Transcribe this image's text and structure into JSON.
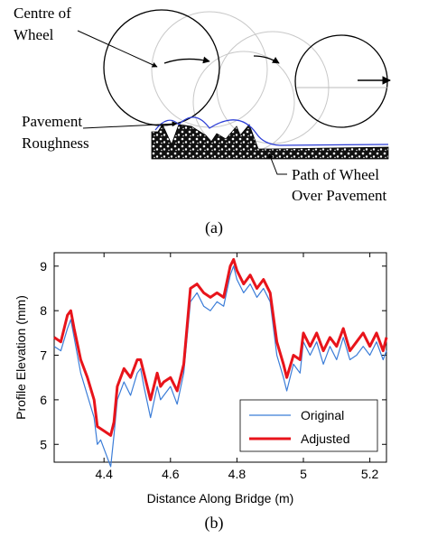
{
  "figure_a": {
    "panel_label": "(a)",
    "labels": {
      "centre_line1": "Centre of",
      "centre_line2": "Wheel",
      "roughness_line1": "Pavement",
      "roughness_line2": "Roughness",
      "path_line1": "Path of Wheel",
      "path_line2": "Over Pavement"
    }
  },
  "figure_b": {
    "panel_label": "(b)",
    "chart_data": {
      "type": "line",
      "xlabel": "Distance Along Bridge (m)",
      "ylabel": "Profile Elevation (mm)",
      "xlim": [
        4.25,
        5.25
      ],
      "ylim": [
        4.6,
        9.3
      ],
      "xticks": [
        "4.4",
        "4.6",
        "4.8",
        "5",
        "5.2"
      ],
      "yticks": [
        "5",
        "6",
        "7",
        "8",
        "9"
      ],
      "xtick_values": [
        4.4,
        4.6,
        4.8,
        5.0,
        5.2
      ],
      "ytick_values": [
        5,
        6,
        7,
        8,
        9
      ],
      "legend_position": "bottom-right",
      "series": [
        {
          "name": "Original",
          "color": "#3b7dd8",
          "x": [
            4.25,
            4.27,
            4.29,
            4.3,
            4.31,
            4.33,
            4.35,
            4.37,
            4.38,
            4.39,
            4.4,
            4.41,
            4.42,
            4.43,
            4.44,
            4.46,
            4.48,
            4.5,
            4.51,
            4.52,
            4.54,
            4.56,
            4.57,
            4.58,
            4.6,
            4.62,
            4.64,
            4.66,
            4.68,
            4.7,
            4.72,
            4.74,
            4.76,
            4.78,
            4.79,
            4.8,
            4.82,
            4.84,
            4.86,
            4.88,
            4.9,
            4.92,
            4.94,
            4.95,
            4.97,
            4.99,
            5.0,
            5.02,
            5.04,
            5.06,
            5.08,
            5.1,
            5.12,
            5.14,
            5.16,
            5.18,
            5.2,
            5.22,
            5.24,
            5.25
          ],
          "y": [
            7.2,
            7.1,
            7.6,
            7.8,
            7.4,
            6.6,
            6.1,
            5.6,
            5.0,
            5.1,
            4.9,
            4.7,
            4.5,
            5.2,
            6.0,
            6.4,
            6.1,
            6.6,
            6.7,
            6.3,
            5.6,
            6.3,
            6.0,
            6.1,
            6.3,
            5.9,
            6.6,
            8.2,
            8.4,
            8.1,
            8.0,
            8.2,
            8.1,
            8.8,
            9.0,
            8.7,
            8.4,
            8.6,
            8.3,
            8.5,
            8.2,
            7.0,
            6.5,
            6.2,
            6.8,
            6.6,
            7.3,
            7.0,
            7.3,
            6.8,
            7.2,
            6.9,
            7.4,
            6.9,
            7.0,
            7.2,
            7.0,
            7.3,
            6.9,
            7.1
          ]
        },
        {
          "name": "Adjusted",
          "color": "#e8141b",
          "x": [
            4.25,
            4.27,
            4.29,
            4.3,
            4.31,
            4.33,
            4.35,
            4.37,
            4.38,
            4.4,
            4.42,
            4.43,
            4.44,
            4.46,
            4.48,
            4.5,
            4.51,
            4.52,
            4.54,
            4.56,
            4.57,
            4.58,
            4.6,
            4.62,
            4.64,
            4.66,
            4.68,
            4.7,
            4.72,
            4.74,
            4.76,
            4.78,
            4.79,
            4.8,
            4.82,
            4.84,
            4.86,
            4.88,
            4.9,
            4.92,
            4.94,
            4.95,
            4.97,
            4.99,
            5.0,
            5.02,
            5.04,
            5.06,
            5.08,
            5.1,
            5.12,
            5.14,
            5.16,
            5.18,
            5.2,
            5.22,
            5.24,
            5.25
          ],
          "y": [
            7.4,
            7.3,
            7.9,
            8.0,
            7.6,
            6.9,
            6.5,
            6.0,
            5.4,
            5.3,
            5.2,
            5.5,
            6.3,
            6.7,
            6.5,
            6.9,
            6.9,
            6.6,
            6.0,
            6.6,
            6.3,
            6.4,
            6.5,
            6.2,
            6.8,
            8.5,
            8.6,
            8.4,
            8.3,
            8.4,
            8.3,
            9.0,
            9.15,
            8.9,
            8.6,
            8.8,
            8.5,
            8.7,
            8.4,
            7.3,
            6.8,
            6.5,
            7.0,
            6.9,
            7.5,
            7.2,
            7.5,
            7.1,
            7.4,
            7.2,
            7.6,
            7.1,
            7.3,
            7.5,
            7.2,
            7.5,
            7.1,
            7.4
          ]
        }
      ]
    }
  }
}
